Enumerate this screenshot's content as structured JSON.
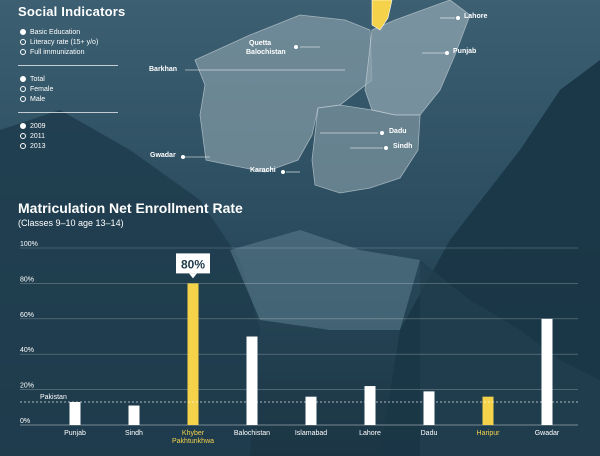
{
  "panel": {
    "title": "Social Indicators",
    "indicators": [
      {
        "label": "Basic Education",
        "selected": true
      },
      {
        "label": "Literacy rate (15+ y/o)",
        "selected": false
      },
      {
        "label": "Full immunization",
        "selected": false
      }
    ],
    "genders": [
      {
        "label": "Total",
        "selected": true
      },
      {
        "label": "Female",
        "selected": false
      },
      {
        "label": "Male",
        "selected": false
      }
    ],
    "years": [
      {
        "label": "2009",
        "selected": true
      },
      {
        "label": "2011",
        "selected": false
      },
      {
        "label": "2013",
        "selected": false
      }
    ]
  },
  "map": {
    "labels": {
      "lahore": "Lahore",
      "quetta": "Quetta",
      "balochistan": "Balochistan",
      "punjab": "Punjab",
      "barkhan": "Barkhan",
      "dadu": "Dadu",
      "sindh": "Sindh",
      "gwadar": "Gwadar",
      "karachi": "Karachi"
    },
    "highlight_color": "#f4d24a"
  },
  "chart_title": "Matriculation Net Enrollment Rate",
  "chart_subtitle": "(Classes 9–10 age 13–14)",
  "chart_data": {
    "type": "bar",
    "categories": [
      "Punjab",
      "Sindh",
      "Khyber Pakhtunkhwa",
      "Balochistan",
      "Islamabad",
      "Lahore",
      "Dadu",
      "Haripur",
      "Gwadar"
    ],
    "values": [
      13,
      11,
      80,
      50,
      16,
      22,
      19,
      16,
      60
    ],
    "highlight": [
      "Khyber Pakhtunkhwa",
      "Haripur"
    ],
    "highlight_color": "#f4d24a",
    "bar_color": "#ffffff",
    "ylim": [
      0,
      100
    ],
    "yticks": [
      "0%",
      "20%",
      "40%",
      "60%",
      "80%",
      "100%"
    ],
    "reference_line": {
      "label": "Pakistan",
      "value": 13
    },
    "callout": {
      "category": "Khyber Pakhtunkhwa",
      "text": "80%"
    },
    "grid": true
  }
}
